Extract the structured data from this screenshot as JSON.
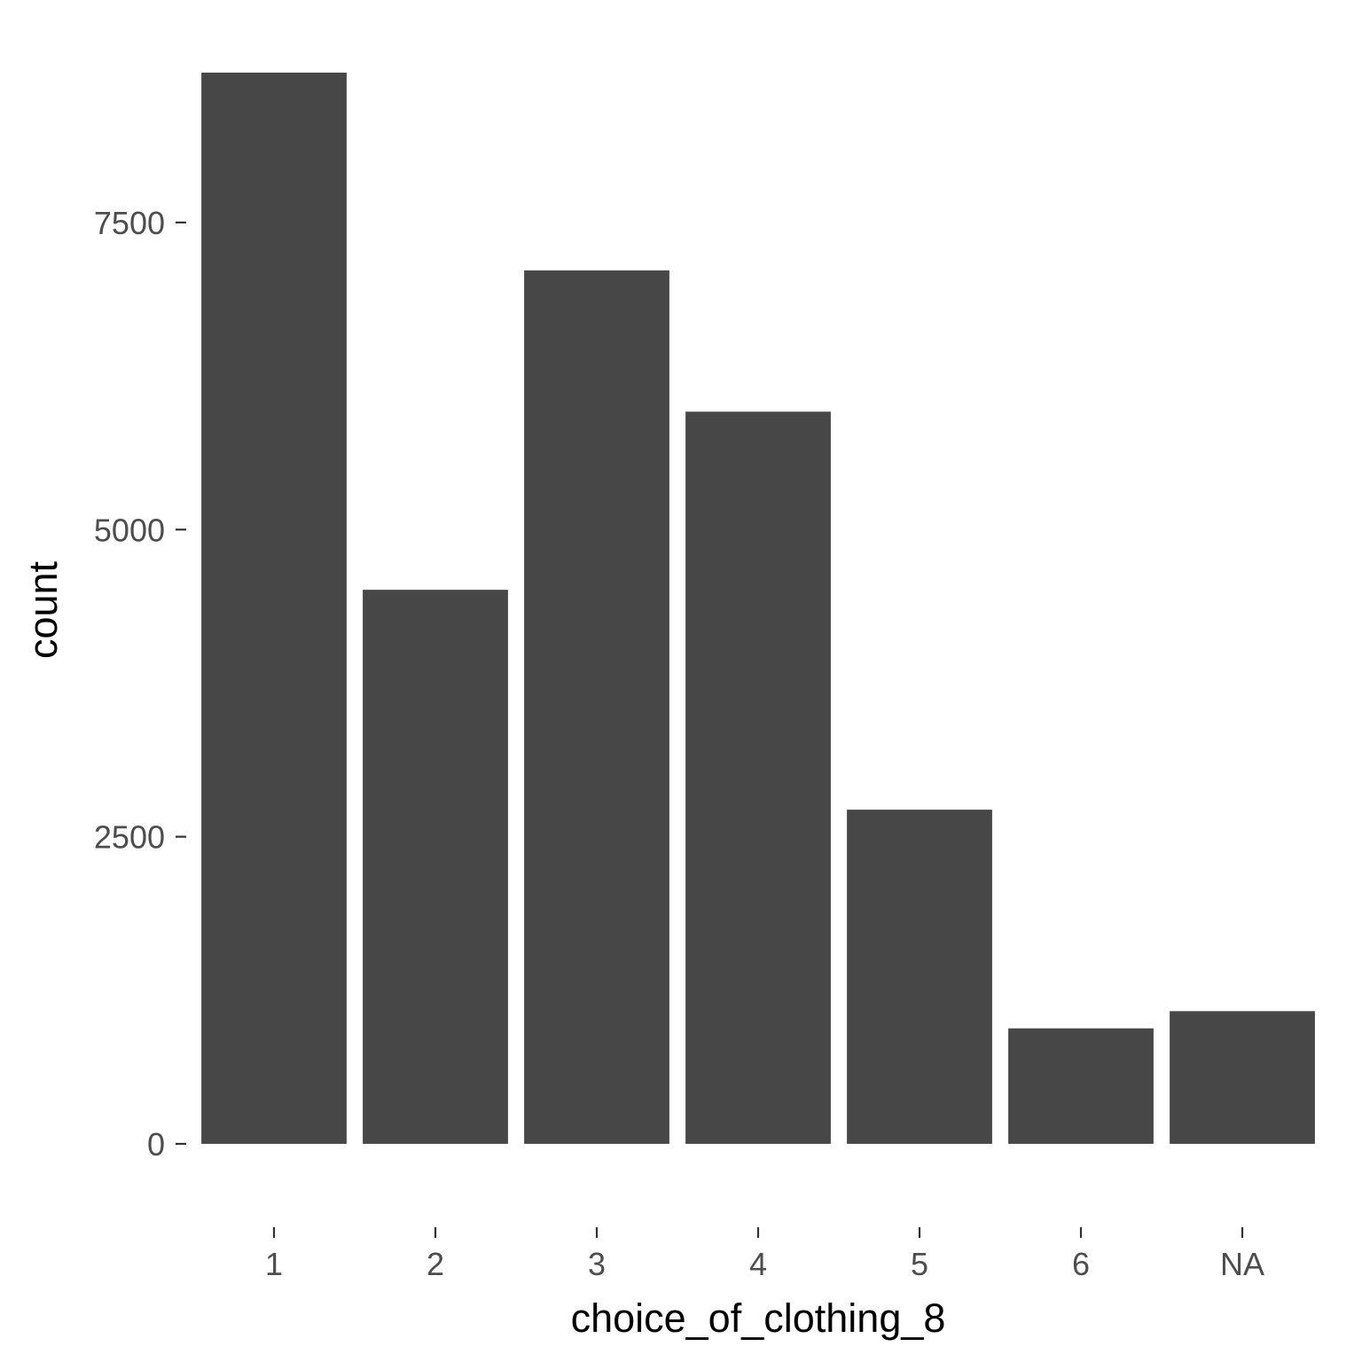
{
  "chart_data": {
    "type": "bar",
    "categories": [
      "1",
      "2",
      "3",
      "4",
      "5",
      "6",
      "NA"
    ],
    "values": [
      8720,
      4510,
      7110,
      5960,
      2720,
      940,
      1080
    ],
    "xlabel": "choice_of_clothing_8",
    "ylabel": "count",
    "ylim": [
      -390,
      9080
    ],
    "yticks": [
      0,
      2500,
      5000,
      7500
    ],
    "ytick_labels": [
      "0",
      "2500",
      "5000",
      "7500"
    ],
    "grid": false,
    "bar_color": "#474747",
    "background": "#ffffff"
  }
}
